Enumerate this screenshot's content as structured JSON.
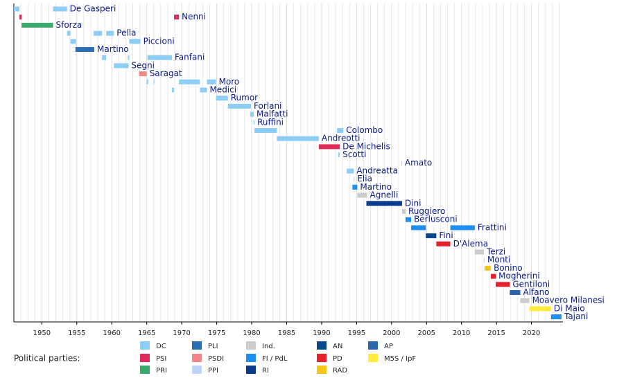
{
  "chart_data": {
    "type": "timeline",
    "xlim": [
      1946,
      2024.5
    ],
    "xticks": [
      1950,
      1955,
      1960,
      1965,
      1970,
      1975,
      1980,
      1985,
      1990,
      1995,
      2000,
      2005,
      2010,
      2015,
      2020
    ],
    "xminorticks": [
      1947,
      1948,
      1949,
      1951,
      1952,
      1953,
      1954,
      1956,
      1957,
      1958,
      1959,
      1961,
      1962,
      1963,
      1964,
      1966,
      1967,
      1968,
      1969,
      1971,
      1972,
      1973,
      1974,
      1976,
      1977,
      1978,
      1979,
      1981,
      1982,
      1983,
      1984,
      1986,
      1987,
      1988,
      1989,
      1991,
      1992,
      1993,
      1994,
      1996,
      1997,
      1998,
      1999,
      2001,
      2002,
      2003,
      2004,
      2006,
      2007,
      2008,
      2009,
      2011,
      2012,
      2013,
      2014,
      2016,
      2017,
      2018,
      2019,
      2021,
      2022,
      2023,
      2024
    ],
    "grid": true,
    "legend_title": "Political parties:",
    "parties": [
      {
        "name": "DC",
        "color": "#8ecdf4"
      },
      {
        "name": "PSI",
        "color": "#df2a5a"
      },
      {
        "name": "PRI",
        "color": "#3aa96a"
      },
      {
        "name": "PLI",
        "color": "#2b6fb8"
      },
      {
        "name": "PSDI",
        "color": "#f28787"
      },
      {
        "name": "PPI",
        "color": "#bfd3f8"
      },
      {
        "name": "Ind.",
        "color": "#cccccc"
      },
      {
        "name": "FI / PdL",
        "color": "#1e8ef0"
      },
      {
        "name": "RI",
        "color": "#0a3a8c"
      },
      {
        "name": "AN",
        "color": "#0b4a8a"
      },
      {
        "name": "PD",
        "color": "#e5202d"
      },
      {
        "name": "RAD",
        "color": "#f5c518"
      },
      {
        "name": "AP",
        "color": "#2a64ad"
      },
      {
        "name": "M5S / IpF",
        "color": "#ffeb3b"
      }
    ],
    "rows": [
      {
        "name": "De Gasperi",
        "segments": [
          {
            "start": 1946.0,
            "end": 1946.8,
            "party": "DC"
          },
          {
            "start": 1951.6,
            "end": 1953.6,
            "party": "DC"
          }
        ]
      },
      {
        "name": "Nenni",
        "segments": [
          {
            "start": 1946.8,
            "end": 1947.1,
            "party": "PSI"
          },
          {
            "start": 1968.9,
            "end": 1969.6,
            "party": "PSI"
          }
        ]
      },
      {
        "name": "Sforza",
        "segments": [
          {
            "start": 1947.1,
            "end": 1951.6,
            "party": "PRI"
          }
        ]
      },
      {
        "name": "Pella",
        "segments": [
          {
            "start": 1953.6,
            "end": 1954.1,
            "party": "DC"
          },
          {
            "start": 1957.4,
            "end": 1958.6,
            "party": "DC"
          },
          {
            "start": 1959.2,
            "end": 1960.3,
            "party": "DC"
          }
        ]
      },
      {
        "name": "Piccioni",
        "segments": [
          {
            "start": 1954.1,
            "end": 1954.9,
            "party": "DC"
          },
          {
            "start": 1962.5,
            "end": 1964.1,
            "party": "DC"
          }
        ]
      },
      {
        "name": "Martino",
        "segments": [
          {
            "start": 1954.8,
            "end": 1957.5,
            "party": "PLI"
          }
        ]
      },
      {
        "name": "Fanfani",
        "segments": [
          {
            "start": 1958.6,
            "end": 1959.2,
            "party": "DC"
          },
          {
            "start": 1962.3,
            "end": 1962.5,
            "party": "DC"
          },
          {
            "start": 1965.1,
            "end": 1968.6,
            "party": "DC"
          }
        ]
      },
      {
        "name": "Segni",
        "segments": [
          {
            "start": 1960.3,
            "end": 1962.4,
            "party": "DC"
          }
        ]
      },
      {
        "name": "Saragat",
        "segments": [
          {
            "start": 1963.9,
            "end": 1965.0,
            "party": "PSDI"
          }
        ]
      },
      {
        "name": "Moro",
        "segments": [
          {
            "start": 1965.0,
            "end": 1965.2,
            "party": "DC"
          },
          {
            "start": 1966.0,
            "end": 1966.1,
            "party": "DC"
          },
          {
            "start": 1969.6,
            "end": 1972.6,
            "party": "DC"
          },
          {
            "start": 1973.6,
            "end": 1974.9,
            "party": "DC"
          }
        ]
      },
      {
        "name": "Medici",
        "segments": [
          {
            "start": 1968.6,
            "end": 1968.9,
            "party": "DC"
          },
          {
            "start": 1972.6,
            "end": 1973.6,
            "party": "DC"
          }
        ]
      },
      {
        "name": "Rumor",
        "segments": [
          {
            "start": 1974.9,
            "end": 1976.6,
            "party": "DC"
          }
        ]
      },
      {
        "name": "Forlani",
        "segments": [
          {
            "start": 1976.6,
            "end": 1979.9,
            "party": "DC"
          }
        ]
      },
      {
        "name": "Malfatti",
        "segments": [
          {
            "start": 1979.8,
            "end": 1980.3,
            "party": "DC"
          }
        ]
      },
      {
        "name": "Ruffini",
        "segments": [
          {
            "start": 1980.3,
            "end": 1980.4,
            "party": "DC"
          }
        ]
      },
      {
        "name": "Colombo",
        "segments": [
          {
            "start": 1980.4,
            "end": 1983.6,
            "party": "DC"
          },
          {
            "start": 1992.2,
            "end": 1993.1,
            "party": "DC"
          }
        ]
      },
      {
        "name": "Andreotti",
        "segments": [
          {
            "start": 1983.6,
            "end": 1989.6,
            "party": "DC"
          }
        ]
      },
      {
        "name": "De Michelis",
        "segments": [
          {
            "start": 1989.6,
            "end": 1992.6,
            "party": "PSI"
          }
        ]
      },
      {
        "name": "Scotti",
        "segments": [
          {
            "start": 1992.4,
            "end": 1992.6,
            "party": "DC"
          }
        ]
      },
      {
        "name": "Amato",
        "segments": [
          {
            "start": 2001.4,
            "end": 2001.5,
            "party": "Ind."
          }
        ]
      },
      {
        "name": "Andreatta",
        "segments": [
          {
            "start": 1993.6,
            "end": 1994.6,
            "party": "DC"
          }
        ]
      },
      {
        "name": "Elia",
        "segments": [
          {
            "start": 1994.6,
            "end": 1994.7,
            "party": "PPI"
          }
        ]
      },
      {
        "name": "Martino",
        "segments": [
          {
            "start": 1994.4,
            "end": 1995.1,
            "party": "FI / PdL"
          }
        ]
      },
      {
        "name": "Agnelli",
        "segments": [
          {
            "start": 1995.1,
            "end": 1996.5,
            "party": "Ind."
          }
        ]
      },
      {
        "name": "Dini",
        "segments": [
          {
            "start": 1996.4,
            "end": 2001.5,
            "party": "RI"
          }
        ]
      },
      {
        "name": "Ruggiero",
        "segments": [
          {
            "start": 2001.5,
            "end": 2002.0,
            "party": "Ind."
          }
        ]
      },
      {
        "name": "Berlusconi",
        "segments": [
          {
            "start": 2002.0,
            "end": 2002.8,
            "party": "FI / PdL"
          }
        ]
      },
      {
        "name": "Frattini",
        "segments": [
          {
            "start": 2002.8,
            "end": 2004.9,
            "party": "FI / PdL"
          },
          {
            "start": 2008.4,
            "end": 2011.9,
            "party": "FI / PdL"
          }
        ]
      },
      {
        "name": "Fini",
        "segments": [
          {
            "start": 2004.9,
            "end": 2006.4,
            "party": "AN"
          }
        ]
      },
      {
        "name": "D'Alema",
        "segments": [
          {
            "start": 2006.4,
            "end": 2008.4,
            "party": "PD"
          }
        ]
      },
      {
        "name": "Terzi",
        "segments": [
          {
            "start": 2011.9,
            "end": 2013.2,
            "party": "Ind."
          }
        ]
      },
      {
        "name": "Monti",
        "segments": [
          {
            "start": 2013.2,
            "end": 2013.3,
            "party": "Ind."
          }
        ]
      },
      {
        "name": "Bonino",
        "segments": [
          {
            "start": 2013.3,
            "end": 2014.2,
            "party": "RAD"
          }
        ]
      },
      {
        "name": "Mogherini",
        "segments": [
          {
            "start": 2014.2,
            "end": 2014.9,
            "party": "PD"
          }
        ]
      },
      {
        "name": "Gentiloni",
        "segments": [
          {
            "start": 2014.9,
            "end": 2016.9,
            "party": "PD"
          }
        ]
      },
      {
        "name": "Alfano",
        "segments": [
          {
            "start": 2016.9,
            "end": 2018.4,
            "party": "AP"
          }
        ]
      },
      {
        "name": "Moavero Milanesi",
        "segments": [
          {
            "start": 2018.4,
            "end": 2019.7,
            "party": "Ind."
          }
        ]
      },
      {
        "name": "Di Maio",
        "segments": [
          {
            "start": 2019.7,
            "end": 2022.8,
            "party": "M5S / IpF"
          }
        ]
      },
      {
        "name": "Tajani",
        "segments": [
          {
            "start": 2022.8,
            "end": 2024.3,
            "party": "FI / PdL"
          }
        ]
      }
    ]
  }
}
